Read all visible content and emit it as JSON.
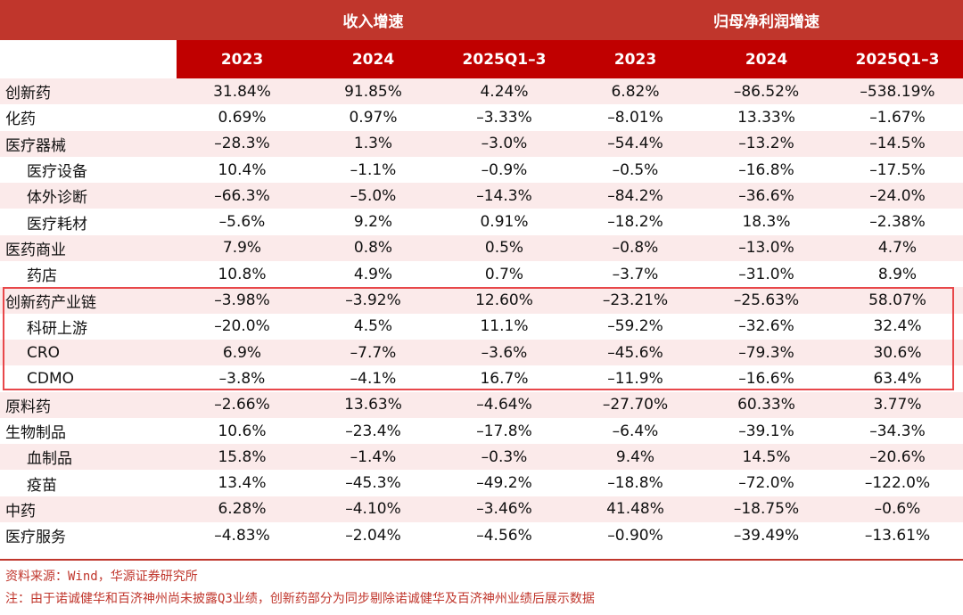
{
  "header": {
    "group1": "收入增速",
    "group2": "归母净利润增速",
    "columns": [
      "2023",
      "2024",
      "2025Q1–3",
      "2023",
      "2024",
      "2025Q1–3"
    ]
  },
  "rows": [
    {
      "label": "创新药",
      "sub": false,
      "values": [
        "31.84%",
        "91.85%",
        "4.24%",
        "6.82%",
        "–86.52%",
        "–538.19%"
      ]
    },
    {
      "label": "化药",
      "sub": false,
      "values": [
        "0.69%",
        "0.97%",
        "–3.33%",
        "–8.01%",
        "13.33%",
        "–1.67%"
      ]
    },
    {
      "label": "医疗器械",
      "sub": false,
      "values": [
        "–28.3%",
        "1.3%",
        "–3.0%",
        "–54.4%",
        "–13.2%",
        "–14.5%"
      ]
    },
    {
      "label": "医疗设备",
      "sub": true,
      "values": [
        "10.4%",
        "–1.1%",
        "–0.9%",
        "–0.5%",
        "–16.8%",
        "–17.5%"
      ]
    },
    {
      "label": "体外诊断",
      "sub": true,
      "values": [
        "–66.3%",
        "–5.0%",
        "–14.3%",
        "–84.2%",
        "–36.6%",
        "–24.0%"
      ]
    },
    {
      "label": "医疗耗材",
      "sub": true,
      "values": [
        "–5.6%",
        "9.2%",
        "0.91%",
        "–18.2%",
        "18.3%",
        "–2.38%"
      ]
    },
    {
      "label": "医药商业",
      "sub": false,
      "values": [
        "7.9%",
        "0.8%",
        "0.5%",
        "–0.8%",
        "–13.0%",
        "4.7%"
      ]
    },
    {
      "label": "药店",
      "sub": true,
      "values": [
        "10.8%",
        "4.9%",
        "0.7%",
        "–3.7%",
        "–31.0%",
        "8.9%"
      ]
    },
    {
      "label": "创新药产业链",
      "sub": false,
      "values": [
        "–3.98%",
        "–3.92%",
        "12.60%",
        "–23.21%",
        "–25.63%",
        "58.07%"
      ]
    },
    {
      "label": "科研上游",
      "sub": true,
      "values": [
        "–20.0%",
        "4.5%",
        "11.1%",
        "–59.2%",
        "–32.6%",
        "32.4%"
      ]
    },
    {
      "label": "CRO",
      "sub": true,
      "values": [
        "6.9%",
        "–7.7%",
        "–3.6%",
        "–45.6%",
        "–79.3%",
        "30.6%"
      ]
    },
    {
      "label": "CDMO",
      "sub": true,
      "values": [
        "–3.8%",
        "–4.1%",
        "16.7%",
        "–11.9%",
        "–16.6%",
        "63.4%"
      ]
    },
    {
      "label": "原料药",
      "sub": false,
      "values": [
        "–2.66%",
        "13.63%",
        "–4.64%",
        "–27.70%",
        "60.33%",
        "3.77%"
      ]
    },
    {
      "label": "生物制品",
      "sub": false,
      "values": [
        "10.6%",
        "–23.4%",
        "–17.8%",
        "–6.4%",
        "–39.1%",
        "–34.3%"
      ]
    },
    {
      "label": "血制品",
      "sub": true,
      "values": [
        "15.8%",
        "–1.4%",
        "–0.3%",
        "9.4%",
        "14.5%",
        "–20.6%"
      ]
    },
    {
      "label": "疫苗",
      "sub": true,
      "values": [
        "13.4%",
        "–45.3%",
        "–49.2%",
        "–18.8%",
        "–72.0%",
        "–122.0%"
      ]
    },
    {
      "label": "中药",
      "sub": false,
      "values": [
        "6.28%",
        "–4.10%",
        "–3.46%",
        "41.48%",
        "–18.75%",
        "–0.6%"
      ]
    },
    {
      "label": "医疗服务",
      "sub": false,
      "values": [
        "–4.83%",
        "–2.04%",
        "–4.56%",
        "–0.90%",
        "–39.49%",
        "–13.61%"
      ]
    }
  ],
  "notes": {
    "source": "资料来源：Wind，华源证券研究所",
    "note": "注：由于诺诚健华和百济神州尚未披露Q3业绩，创新药部分为同步剔除诺诚健华及百济神州业绩后展示数据"
  },
  "colors": {
    "header_red": "#c0362c",
    "subheader_red": "#c00000",
    "row_shade": "#fbeaea",
    "highlight_border": "#e8474a"
  }
}
